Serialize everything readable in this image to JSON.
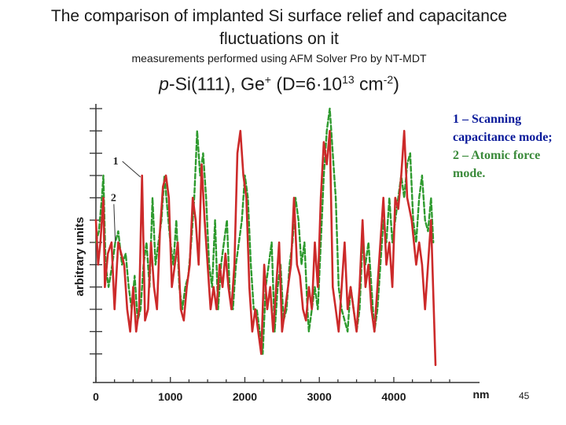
{
  "slide": {
    "title": "The comparison of implanted Si surface relief and capacitance fluctuations on it",
    "subtitle": "measurements performed using AFM Solver Pro by NT-MDT",
    "sample_prefix": "p",
    "sample_main": "-Si(111), Ge",
    "sample_plus": "+",
    "sample_dose": " (D=6·10",
    "sample_exp": "13",
    "sample_unit": " cm",
    "sample_unit_exp": "-2",
    "sample_close": ")",
    "page_number": "45"
  },
  "legend": {
    "item1": "1 – Scanning capacitance mode;",
    "item2": "2 – Atomic force mode."
  },
  "colors": {
    "series1": "#cc2a2a",
    "series2": "#2e9a2e",
    "axis": "#333333"
  },
  "chart_data": {
    "type": "line",
    "xlabel": "nm",
    "ylabel": "arbitrary units",
    "xlim": [
      0,
      4750
    ],
    "ylim": [
      0,
      12
    ],
    "x_ticks": [
      0,
      1000,
      2000,
      3000,
      4000
    ],
    "x_tick_labels": [
      "0",
      "1000",
      "2000",
      "3000",
      "4000"
    ],
    "y_ticks": [
      1,
      2,
      3,
      4,
      5,
      6,
      7,
      8,
      9,
      10,
      11,
      12
    ],
    "curve_labels": [
      "1",
      "2"
    ],
    "series": [
      {
        "name": "1 – Scanning capacitance mode",
        "style": "solid",
        "x": [
          0,
          30,
          60,
          100,
          120,
          160,
          210,
          250,
          300,
          340,
          380,
          420,
          460,
          500,
          540,
          580,
          620,
          660,
          700,
          740,
          780,
          820,
          860,
          900,
          940,
          980,
          1020,
          1060,
          1100,
          1140,
          1180,
          1220,
          1260,
          1300,
          1340,
          1380,
          1420,
          1460,
          1500,
          1540,
          1580,
          1620,
          1660,
          1700,
          1740,
          1780,
          1820,
          1860,
          1900,
          1940,
          1980,
          2020,
          2060,
          2100,
          2140,
          2180,
          2220,
          2260,
          2300,
          2340,
          2380,
          2420,
          2460,
          2500,
          2540,
          2580,
          2620,
          2660,
          2700,
          2740,
          2780,
          2820,
          2860,
          2900,
          2940,
          2980,
          3020,
          3060,
          3100,
          3140,
          3180,
          3220,
          3260,
          3300,
          3340,
          3380,
          3420,
          3460,
          3500,
          3540,
          3580,
          3620,
          3660,
          3700,
          3740,
          3780,
          3820,
          3860,
          3900,
          3940,
          3980,
          4020,
          4060,
          4100,
          4140,
          4180,
          4240,
          4300,
          4340,
          4380,
          4420,
          4460,
          4500,
          4560
        ],
        "values": [
          7,
          5,
          6,
          8,
          4,
          5.5,
          6,
          3,
          6,
          5.5,
          5,
          3,
          2,
          4,
          2,
          3,
          9,
          2.5,
          3,
          6,
          4,
          3,
          6.5,
          8.5,
          9,
          8,
          4,
          5,
          6,
          3,
          2.5,
          4,
          5,
          8,
          7,
          5,
          9.5,
          7,
          5,
          3,
          4,
          3,
          5,
          4,
          5.5,
          4,
          3,
          5,
          10,
          11,
          9,
          8,
          4,
          2,
          3,
          2,
          1,
          5,
          3,
          4,
          2,
          4,
          6,
          2,
          3,
          4,
          5,
          8,
          5,
          4.5,
          3,
          2.5,
          4,
          3,
          6,
          4,
          8,
          10.5,
          9.5,
          11,
          4,
          3,
          2,
          4,
          6,
          3,
          4,
          3,
          2,
          4,
          7,
          4,
          5,
          3,
          2,
          4,
          6,
          8,
          5,
          6,
          4,
          8,
          7.5,
          9,
          11,
          8,
          7,
          5,
          6,
          5,
          3,
          5,
          7,
          0.5
        ]
      },
      {
        "name": "2 – Atomic force mode",
        "style": "dashed",
        "x": [
          0,
          40,
          80,
          100,
          130,
          170,
          220,
          260,
          300,
          350,
          400,
          440,
          480,
          520,
          560,
          600,
          640,
          680,
          720,
          760,
          800,
          840,
          880,
          920,
          960,
          1000,
          1040,
          1080,
          1120,
          1160,
          1200,
          1240,
          1280,
          1320,
          1360,
          1400,
          1440,
          1480,
          1520,
          1560,
          1600,
          1640,
          1680,
          1720,
          1760,
          1800,
          1840,
          1880,
          1920,
          1960,
          2000,
          2040,
          2080,
          2120,
          2160,
          2200,
          2240,
          2280,
          2320,
          2360,
          2400,
          2440,
          2480,
          2520,
          2560,
          2600,
          2640,
          2680,
          2720,
          2760,
          2800,
          2840,
          2860,
          2900,
          2940,
          2980,
          3020,
          3060,
          3100,
          3140,
          3180,
          3220,
          3260,
          3300,
          3340,
          3380,
          3420,
          3460,
          3500,
          3540,
          3580,
          3620,
          3660,
          3700,
          3740,
          3780,
          3820,
          3860,
          3900,
          3940,
          3980,
          4020,
          4060,
          4100,
          4140,
          4180,
          4220,
          4260,
          4300,
          4340,
          4380,
          4420,
          4460,
          4500,
          4530
        ],
        "values": [
          6,
          6.5,
          8,
          9,
          5,
          4,
          5,
          6,
          6.5,
          5,
          5.5,
          4,
          3,
          4.5,
          2.5,
          3,
          5,
          6,
          4,
          8,
          5,
          6,
          7,
          9,
          7.5,
          6,
          5,
          7,
          4,
          3,
          4,
          4.5,
          6,
          8,
          11,
          9,
          10,
          8,
          5,
          4,
          7,
          3,
          5,
          6,
          7,
          3.5,
          3,
          5,
          6,
          7,
          9,
          8,
          5,
          3,
          3,
          2,
          1,
          4,
          5,
          6,
          2,
          4,
          5,
          2.5,
          3,
          5,
          6,
          8,
          7,
          5,
          6,
          3,
          2,
          3,
          4,
          3,
          6,
          9,
          11,
          12,
          10,
          8,
          4,
          3,
          2.5,
          2,
          4,
          3,
          2,
          3,
          6,
          5,
          6,
          4,
          2,
          3,
          5,
          7,
          6,
          8,
          6,
          7,
          8,
          9,
          8,
          9.5,
          10,
          7,
          6,
          8,
          9,
          7,
          6.5,
          8,
          6
        ]
      }
    ]
  }
}
